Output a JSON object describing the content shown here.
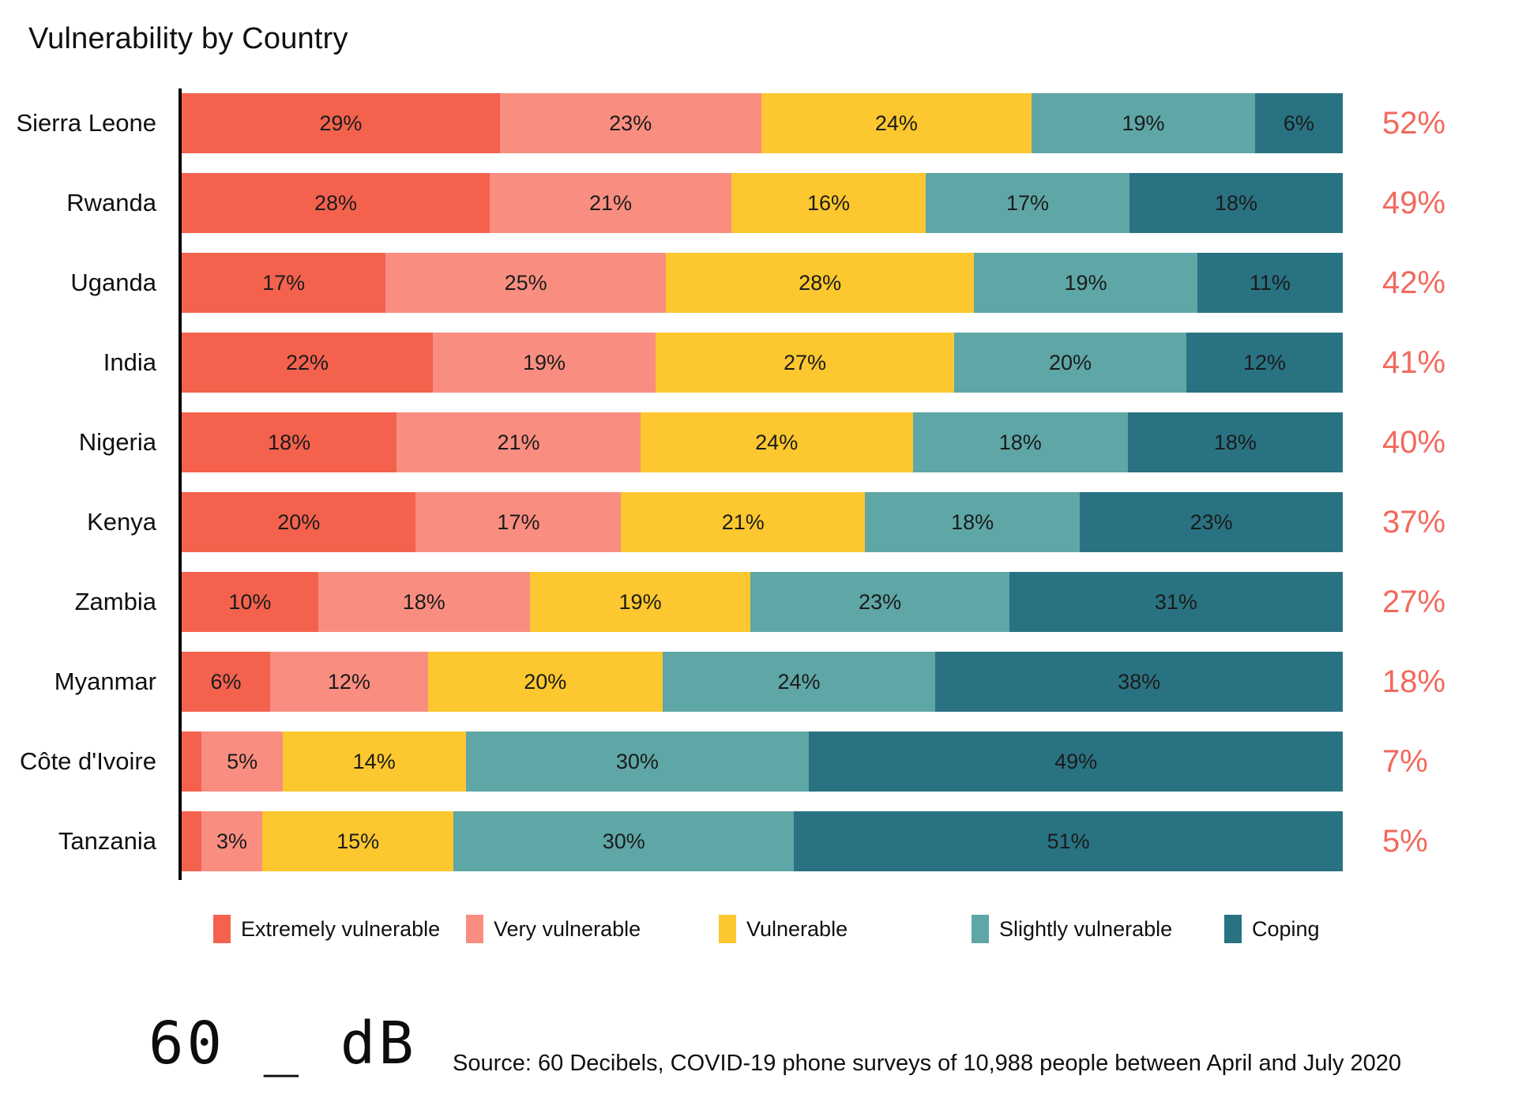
{
  "title": "Vulnerability by Country",
  "chart_data": {
    "type": "bar",
    "orientation": "horizontal",
    "stacked": true,
    "title": "Vulnerability by Country",
    "xlim": [
      0,
      100
    ],
    "value_unit": "%",
    "grid": false,
    "legend_position": "bottom",
    "categories": [
      "Sierra Leone",
      "Rwanda",
      "Uganda",
      "India",
      "Nigeria",
      "Kenya",
      "Zambia",
      "Myanmar",
      "Côte d'Ivoire",
      "Tanzania"
    ],
    "series": [
      {
        "name": "Extremely vulnerable",
        "color": "#F4624E",
        "values": [
          29,
          28,
          17,
          22,
          18,
          20,
          10,
          6,
          2,
          2
        ]
      },
      {
        "name": "Very vulnerable",
        "color": "#F98E80",
        "values": [
          23,
          21,
          25,
          19,
          21,
          17,
          18,
          12,
          5,
          3
        ]
      },
      {
        "name": "Vulnerable",
        "color": "#FCC72F",
        "values": [
          24,
          16,
          28,
          27,
          24,
          21,
          19,
          20,
          14,
          15
        ]
      },
      {
        "name": "Slightly vulnerable",
        "color": "#5FA6A6",
        "values": [
          19,
          17,
          19,
          20,
          18,
          18,
          23,
          24,
          30,
          30
        ]
      },
      {
        "name": "Coping",
        "color": "#297282",
        "values": [
          6,
          18,
          11,
          12,
          18,
          23,
          31,
          38,
          49,
          51
        ]
      }
    ],
    "segment_labels": [
      [
        "29%",
        "23%",
        "24%",
        "19%",
        "6%"
      ],
      [
        "28%",
        "21%",
        "16%",
        "17%",
        "18%"
      ],
      [
        "17%",
        "25%",
        "28%",
        "19%",
        "11%"
      ],
      [
        "22%",
        "19%",
        "27%",
        "20%",
        "12%"
      ],
      [
        "18%",
        "21%",
        "24%",
        "18%",
        "18%"
      ],
      [
        "20%",
        "17%",
        "21%",
        "18%",
        "23%"
      ],
      [
        "10%",
        "18%",
        "19%",
        "23%",
        "31%"
      ],
      [
        "6%",
        "12%",
        "20%",
        "24%",
        "38%"
      ],
      [
        "",
        "5%",
        "14%",
        "30%",
        "49%"
      ],
      [
        "",
        "3%",
        "15%",
        "30%",
        "51%"
      ]
    ],
    "totals": [
      "52%",
      "49%",
      "42%",
      "41%",
      "40%",
      "37%",
      "27%",
      "18%",
      "7%",
      "5%"
    ],
    "totals_color": "#F1695C"
  },
  "legend": {
    "items": [
      {
        "key": "extremely-vulnerable",
        "label": "Extremely vulnerable",
        "color": "#F4624E"
      },
      {
        "key": "very-vulnerable",
        "label": "Very vulnerable",
        "color": "#F98E80"
      },
      {
        "key": "vulnerable",
        "label": "Vulnerable",
        "color": "#FCC72F"
      },
      {
        "key": "slightly-vulnerable",
        "label": "Slightly vulnerable",
        "color": "#5FA6A6"
      },
      {
        "key": "coping",
        "label": "Coping",
        "color": "#297282"
      }
    ]
  },
  "footer": {
    "logo_text": "60 _ dB",
    "source": "Source: 60 Decibels, COVID-19 phone surveys of 10,988 people between April and July 2020"
  }
}
